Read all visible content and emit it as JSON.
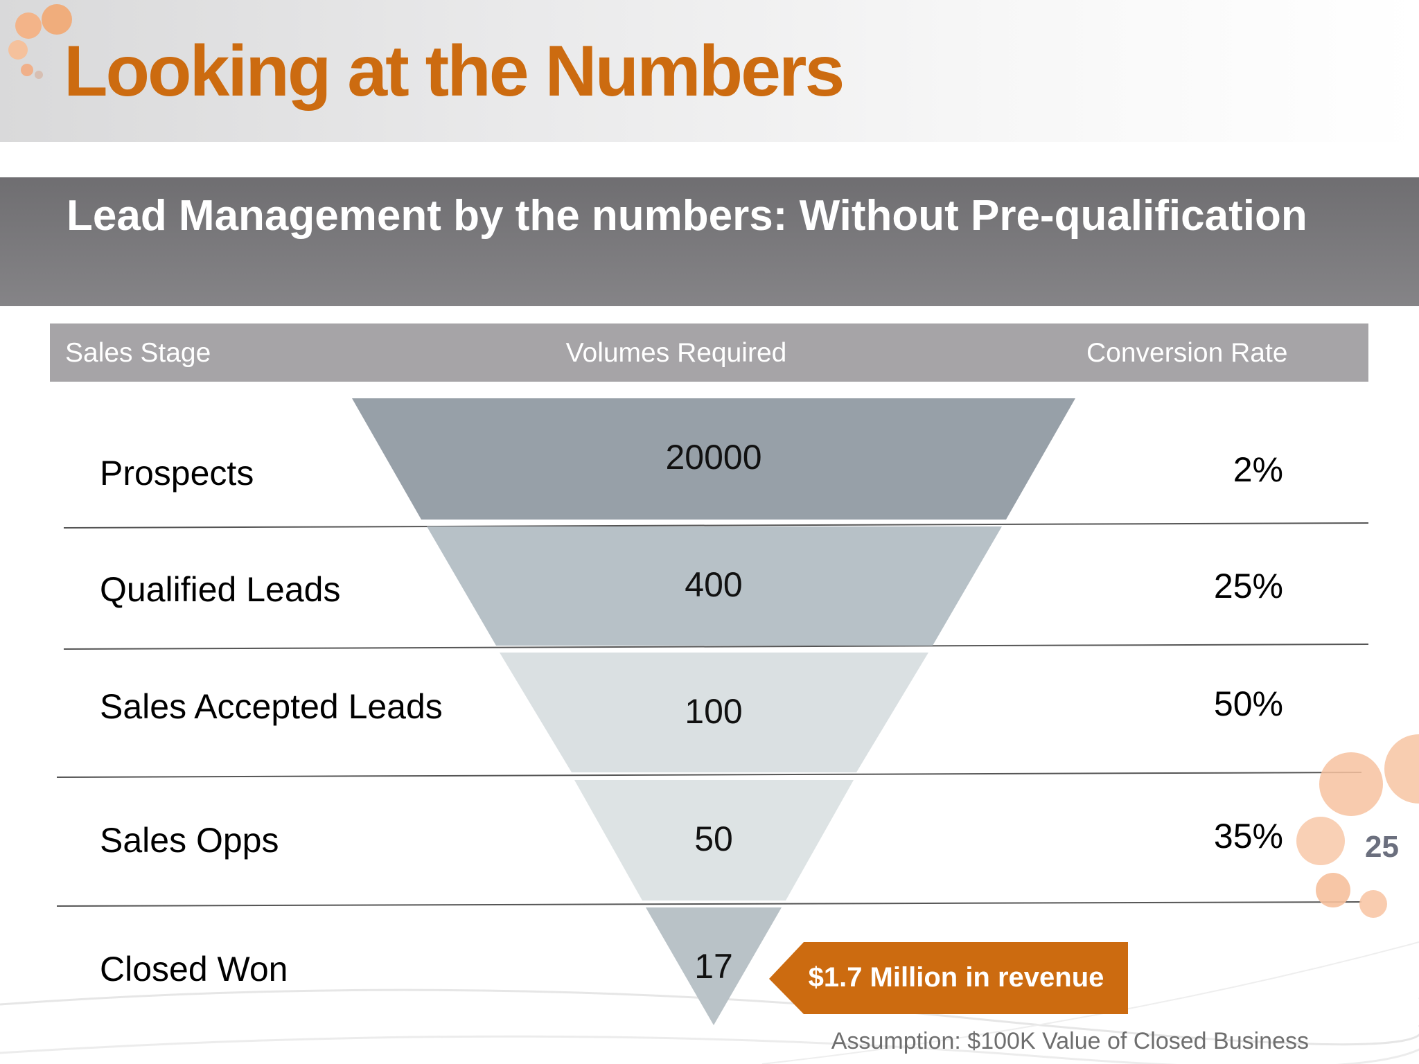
{
  "slide": {
    "title": "Looking at the Numbers",
    "subtitle": "Lead Management by the numbers: Without Pre-qualification",
    "page_number": "25",
    "accent_color": "#cc6b10"
  },
  "table": {
    "headers": {
      "stage": "Sales Stage",
      "volume": "Volumes Required",
      "rate": "Conversion Rate"
    },
    "rows": [
      {
        "stage": "Prospects",
        "volume": "20000",
        "rate": "2%"
      },
      {
        "stage": "Qualified Leads",
        "volume": "400",
        "rate": "25%"
      },
      {
        "stage": "Sales Accepted Leads",
        "volume": "100",
        "rate": "50%"
      },
      {
        "stage": "Sales Opps",
        "volume": "50",
        "rate": "35%"
      },
      {
        "stage": "Closed Won",
        "volume": "17",
        "rate": ""
      }
    ]
  },
  "callout": {
    "text": "$1.7 Million in revenue",
    "color": "#cc6b10"
  },
  "footnote": "Assumption: $100K Value of Closed Business",
  "funnel_colors": [
    "#97a0a8",
    "#b7c1c7",
    "#dae0e2",
    "#dde3e4",
    "#b9c2c7"
  ]
}
